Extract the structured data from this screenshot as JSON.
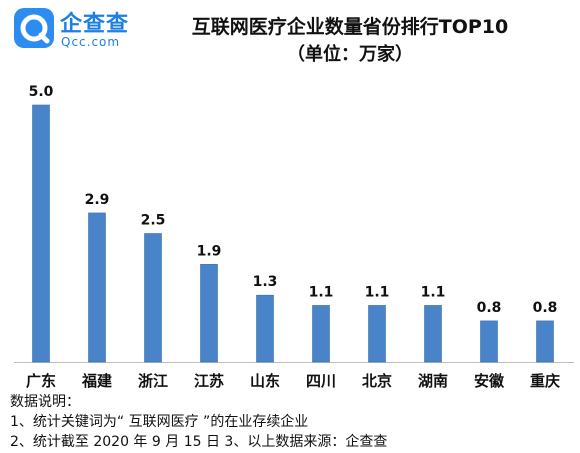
{
  "brand": {
    "name": "企查查",
    "domain": "Qcc.com",
    "color": "#1e7fe3"
  },
  "chart_data": {
    "type": "bar",
    "title": "互联网医疗企业数量省份排行TOP10",
    "subtitle": "（单位：万家）",
    "categories": [
      "广东",
      "福建",
      "浙江",
      "江苏",
      "山东",
      "四川",
      "北京",
      "湖南",
      "安徽",
      "重庆"
    ],
    "values": [
      5.0,
      2.9,
      2.5,
      1.9,
      1.3,
      1.1,
      1.1,
      1.1,
      0.8,
      0.8
    ],
    "value_labels": [
      "5.0",
      "2.9",
      "2.5",
      "1.9",
      "1.3",
      "1.1",
      "1.1",
      "1.1",
      "0.8",
      "0.8"
    ],
    "ylim": [
      0,
      5.0
    ],
    "bar_color": "#4a84c8",
    "bar_border_color": "#3a6fae",
    "grid": false,
    "legend": "none"
  },
  "notes": {
    "heading": "数据说明：",
    "line1": "1、统计关键词为“ 互联网医疗 ”的在业存续企业",
    "line2": "2、统计截至 2020 年 9 月 15 日 3、以上数据来源：企查查"
  }
}
